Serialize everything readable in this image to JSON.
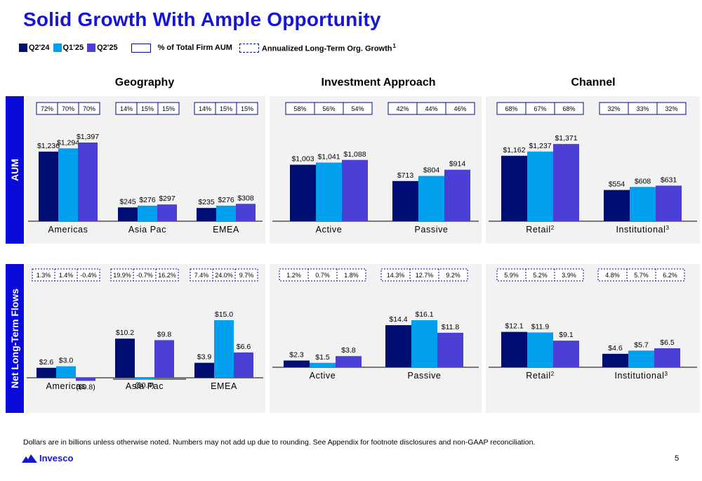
{
  "title": "Solid Growth With Ample Opportunity",
  "legend": {
    "series": [
      {
        "label": "Q2'24",
        "color": "#000e73"
      },
      {
        "label": "Q1'25",
        "color": "#00a0ee"
      },
      {
        "label": "Q2'25",
        "color": "#4b3fd6"
      }
    ],
    "box_label": "% of Total Firm AUM",
    "dashed_label": "Annualized Long-Term Org. Growth",
    "dashed_sup": "1"
  },
  "sections": {
    "geography": "Geography",
    "investment": "Investment Approach",
    "channel": "Channel"
  },
  "rows": {
    "aum": "AUM",
    "flows": "Net Long-Term Flows"
  },
  "chart_data": [
    {
      "type": "bar",
      "name": "AUM by Geography",
      "categories": [
        "Americas",
        "Asia Pac",
        "EMEA"
      ],
      "category_sups": [
        "",
        "",
        ""
      ],
      "series": [
        {
          "name": "Q2'24",
          "values": [
            1236,
            245,
            235
          ]
        },
        {
          "name": "Q1'25",
          "values": [
            1294,
            276,
            276
          ]
        },
        {
          "name": "Q2'25",
          "values": [
            1397,
            297,
            308
          ]
        }
      ],
      "labels": [
        [
          "$1,236",
          "$1,294",
          "$1,397"
        ],
        [
          "$245",
          "$276",
          "$297"
        ],
        [
          "$235",
          "$276",
          "$308"
        ]
      ],
      "pct_boxes": [
        [
          "72%",
          "70%",
          "70%"
        ],
        [
          "14%",
          "15%",
          "15%"
        ],
        [
          "14%",
          "15%",
          "15%"
        ]
      ],
      "ylim": [
        0,
        1397
      ]
    },
    {
      "type": "bar",
      "name": "AUM by Investment Approach",
      "categories": [
        "Active",
        "Passive"
      ],
      "category_sups": [
        "",
        ""
      ],
      "series": [
        {
          "name": "Q2'24",
          "values": [
            1003,
            713
          ]
        },
        {
          "name": "Q1'25",
          "values": [
            1041,
            804
          ]
        },
        {
          "name": "Q2'25",
          "values": [
            1088,
            914
          ]
        }
      ],
      "labels": [
        [
          "$1,003",
          "$1,041",
          "$1,088"
        ],
        [
          "$713",
          "$804",
          "$914"
        ]
      ],
      "pct_boxes": [
        [
          "58%",
          "56%",
          "54%"
        ],
        [
          "42%",
          "44%",
          "46%"
        ]
      ],
      "ylim": [
        0,
        1397
      ]
    },
    {
      "type": "bar",
      "name": "AUM by Channel",
      "categories": [
        "Retail",
        "Institutional"
      ],
      "category_sups": [
        "2",
        "3"
      ],
      "series": [
        {
          "name": "Q2'24",
          "values": [
            1162,
            554
          ]
        },
        {
          "name": "Q1'25",
          "values": [
            1237,
            608
          ]
        },
        {
          "name": "Q2'25",
          "values": [
            1371,
            631
          ]
        }
      ],
      "labels": [
        [
          "$1,162",
          "$1,237",
          "$1,371"
        ],
        [
          "$554",
          "$608",
          "$631"
        ]
      ],
      "pct_boxes": [
        [
          "68%",
          "67%",
          "68%"
        ],
        [
          "32%",
          "33%",
          "32%"
        ]
      ],
      "ylim": [
        0,
        1397
      ]
    },
    {
      "type": "bar",
      "name": "Net Long-Term Flows by Geography",
      "categories": [
        "Americas",
        "Asia Pac",
        "EMEA"
      ],
      "category_sups": [
        "",
        "",
        ""
      ],
      "series": [
        {
          "name": "Q2'24",
          "values": [
            2.6,
            10.2,
            3.9
          ]
        },
        {
          "name": "Q1'25",
          "values": [
            3.0,
            -0.4,
            15.0
          ]
        },
        {
          "name": "Q2'25",
          "values": [
            -0.8,
            9.8,
            6.6
          ]
        }
      ],
      "labels": [
        [
          "$2.6",
          "$3.0",
          "($0.8)"
        ],
        [
          "$10.2",
          "($0.4)",
          "$9.8"
        ],
        [
          "$3.9",
          "$15.0",
          "$6.6"
        ]
      ],
      "growth_boxes": [
        [
          "1.3%",
          "1.4%",
          "-0.4%"
        ],
        [
          "19.9%",
          "-0.7%",
          "16.2%"
        ],
        [
          "7.4%",
          "24.0%",
          "9.7%"
        ]
      ],
      "ylim": [
        -0.8,
        15.0
      ]
    },
    {
      "type": "bar",
      "name": "Net Long-Term Flows by Investment Approach",
      "categories": [
        "Active",
        "Passive"
      ],
      "category_sups": [
        "",
        ""
      ],
      "series": [
        {
          "name": "Q2'24",
          "values": [
            2.3,
            14.4
          ]
        },
        {
          "name": "Q1'25",
          "values": [
            1.5,
            16.1
          ]
        },
        {
          "name": "Q2'25",
          "values": [
            3.8,
            11.8
          ]
        }
      ],
      "labels": [
        [
          "$2.3",
          "$1.5",
          "$3.8"
        ],
        [
          "$14.4",
          "$16.1",
          "$11.8"
        ]
      ],
      "growth_boxes": [
        [
          "1.2%",
          "0.7%",
          "1.8%"
        ],
        [
          "14.3%",
          "12.7%",
          "9.2%"
        ]
      ],
      "ylim": [
        0,
        16.1
      ]
    },
    {
      "type": "bar",
      "name": "Net Long-Term Flows by Channel",
      "categories": [
        "Retail",
        "Institutional"
      ],
      "category_sups": [
        "2",
        "3"
      ],
      "series": [
        {
          "name": "Q2'24",
          "values": [
            12.1,
            4.6
          ]
        },
        {
          "name": "Q1'25",
          "values": [
            11.9,
            5.7
          ]
        },
        {
          "name": "Q2'25",
          "values": [
            9.1,
            6.5
          ]
        }
      ],
      "labels": [
        [
          "$12.1",
          "$11.9",
          "$9.1"
        ],
        [
          "$4.6",
          "$5.7",
          "$6.5"
        ]
      ],
      "growth_boxes": [
        [
          "5.9%",
          "5.2%",
          "3.9%"
        ],
        [
          "4.8%",
          "5.7%",
          "6.2%"
        ]
      ],
      "ylim": [
        0,
        16.1
      ]
    }
  ],
  "footnote": "Dollars are in billions unless otherwise noted. Numbers may not add up due to rounding. See Appendix for footnote disclosures and non-GAAP reconciliation.",
  "logo_text": "Invesco",
  "page_number": "5"
}
